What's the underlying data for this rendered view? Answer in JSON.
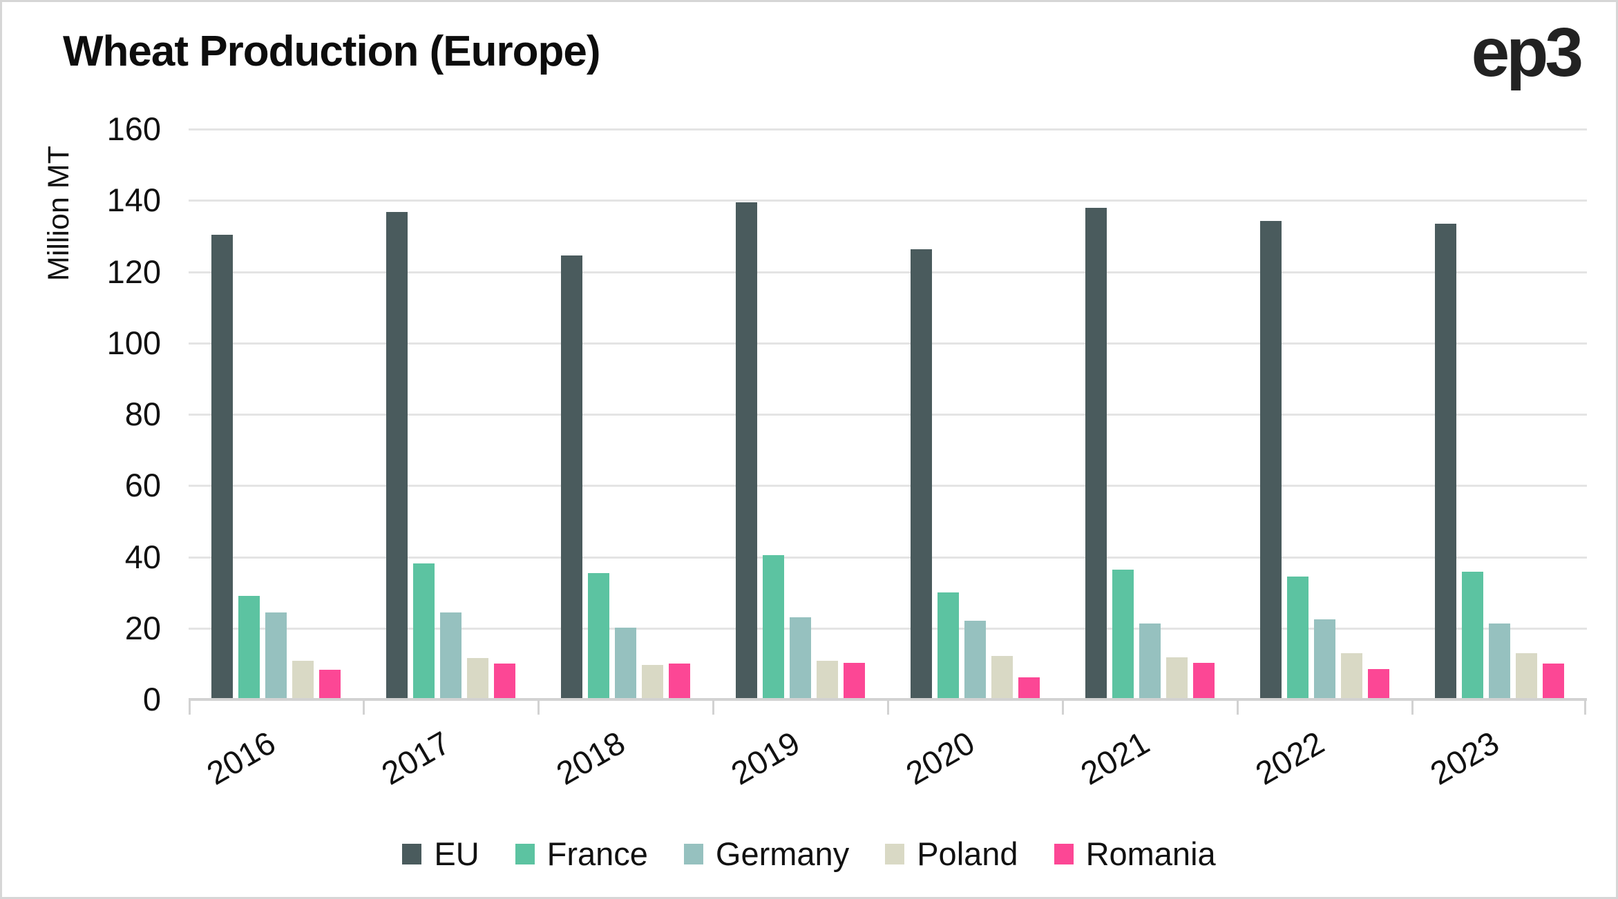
{
  "title": "Wheat Production (Europe)",
  "logo": "ep3",
  "y_axis": {
    "title": "Million MT"
  },
  "chart_data": {
    "type": "bar",
    "title": "Wheat Production (Europe)",
    "xlabel": "",
    "ylabel": "Million MT",
    "ylim": [
      0,
      160
    ],
    "ytick_step": 20,
    "grid": "horizontal",
    "legend_position": "bottom",
    "categories": [
      "2016",
      "2017",
      "2018",
      "2019",
      "2020",
      "2021",
      "2022",
      "2023"
    ],
    "series": [
      {
        "name": "EU",
        "color": "#4a5b5d",
        "values": [
          130.3,
          136.7,
          124.5,
          139.4,
          126.3,
          138.0,
          134.2,
          133.5
        ]
      },
      {
        "name": "France",
        "color": "#5cc3a1",
        "values": [
          29.0,
          38.1,
          35.4,
          40.4,
          30.0,
          36.5,
          34.5,
          35.8
        ]
      },
      {
        "name": "Germany",
        "color": "#96c1bf",
        "values": [
          24.4,
          24.4,
          20.1,
          23.0,
          22.1,
          21.3,
          22.4,
          21.4
        ]
      },
      {
        "name": "Poland",
        "color": "#d9d9c5",
        "values": [
          10.8,
          11.6,
          9.6,
          10.9,
          12.3,
          11.8,
          13.0,
          12.9
        ]
      },
      {
        "name": "Romania",
        "color": "#fc4795",
        "values": [
          8.4,
          10.0,
          10.1,
          10.2,
          6.2,
          10.3,
          8.5,
          10.0
        ]
      }
    ]
  },
  "colors": {
    "gridline": "#e4e4e4",
    "axis": "#d2d2d2",
    "text": "#111111",
    "background": "#ffffff"
  }
}
